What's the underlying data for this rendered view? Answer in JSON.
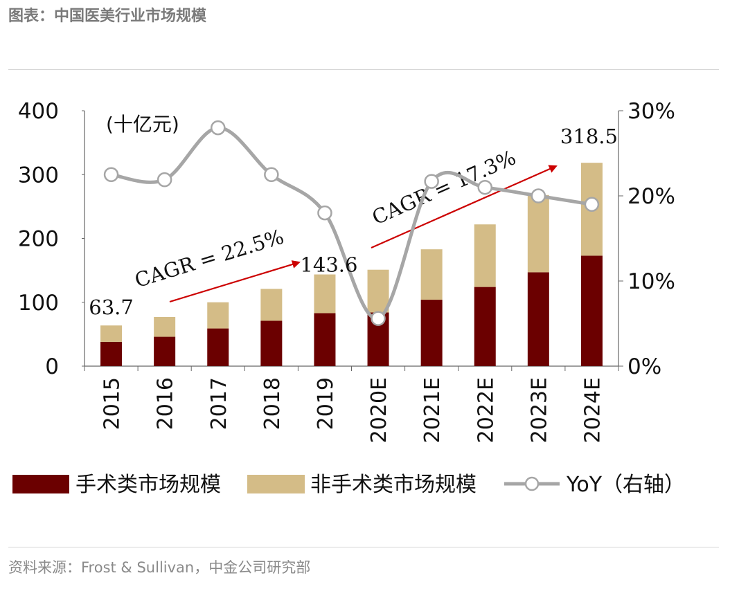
{
  "figure_title": "图表：中国医美行业市场规模",
  "source_label": "资料来源：",
  "source_text": "Frost & Sullivan，中金公司研究部",
  "chart_data": {
    "type": "bar",
    "stacked": true,
    "unit_label": "(十亿元)",
    "categories": [
      "2015",
      "2016",
      "2017",
      "2018",
      "2019",
      "2020E",
      "2021E",
      "2022E",
      "2023E",
      "2024E"
    ],
    "series": [
      {
        "name": "手术类市场规模",
        "type": "bar",
        "axis": "left",
        "color": "#6b0000",
        "values": [
          38,
          46,
          59,
          71,
          83,
          84,
          104,
          124,
          147,
          173
        ]
      },
      {
        "name": "非手术类市场规模",
        "type": "bar",
        "axis": "left",
        "color": "#d4bc87",
        "values": [
          25.7,
          31,
          41,
          50,
          60.6,
          67,
          79,
          98,
          121,
          145.5
        ]
      },
      {
        "name": "YoY（右轴）",
        "type": "line",
        "axis": "right",
        "color": "#a6a6a6",
        "values": [
          22.5,
          21.9,
          28.0,
          22.5,
          18.0,
          5.6,
          21.7,
          21.0,
          20.0,
          19.0
        ]
      }
    ],
    "data_labels": [
      {
        "category": "2015",
        "text": "63.7"
      },
      {
        "category": "2019",
        "text": "143.6"
      },
      {
        "category": "2024E",
        "text": "318.5"
      }
    ],
    "annotations": [
      {
        "text": "CAGR = 22.5%",
        "from": "2015",
        "to": "2019"
      },
      {
        "text": "CAGR = 17.3%",
        "from": "2020E",
        "to": "2024E"
      }
    ],
    "y_left": {
      "min": 0,
      "max": 400,
      "ticks": [
        0,
        100,
        200,
        300,
        400
      ]
    },
    "y_right": {
      "min": 0,
      "max": 30,
      "ticks": [
        "0%",
        "10%",
        "20%",
        "30%"
      ]
    },
    "legend_position": "bottom"
  }
}
